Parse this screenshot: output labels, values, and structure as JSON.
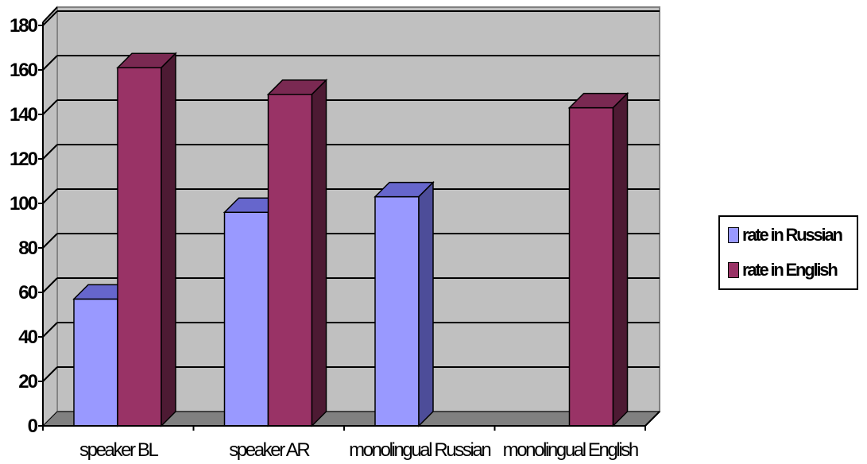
{
  "chart_data": {
    "type": "bar",
    "categories": [
      "speaker BL",
      "speaker AR",
      "monolingual Russian",
      "monolingual English"
    ],
    "category_labels": [
      "speaker BL",
      "speaker AR",
      "monolingual Russian",
      "monolingual English"
    ],
    "series": [
      {
        "name": "rate in Russian",
        "values": [
          57,
          96,
          103,
          null
        ],
        "color": "#9999ff",
        "top_color": "#6666cc",
        "side_color": "#4d4d99"
      },
      {
        "name": "rate in English",
        "values": [
          161,
          149,
          0,
          143
        ],
        "color": "#993366",
        "top_color": "#7a2952",
        "side_color": "#4d1a33"
      }
    ],
    "ylim": [
      0,
      180
    ],
    "yticks": [
      "0",
      "20",
      "40",
      "60",
      "80",
      "100",
      "120",
      "140",
      "160",
      "180"
    ],
    "grid": true,
    "legend_position": "right",
    "plot_background": "#c0c0c0",
    "floor_color": "#808080",
    "title": "",
    "xlabel": "",
    "ylabel": ""
  }
}
